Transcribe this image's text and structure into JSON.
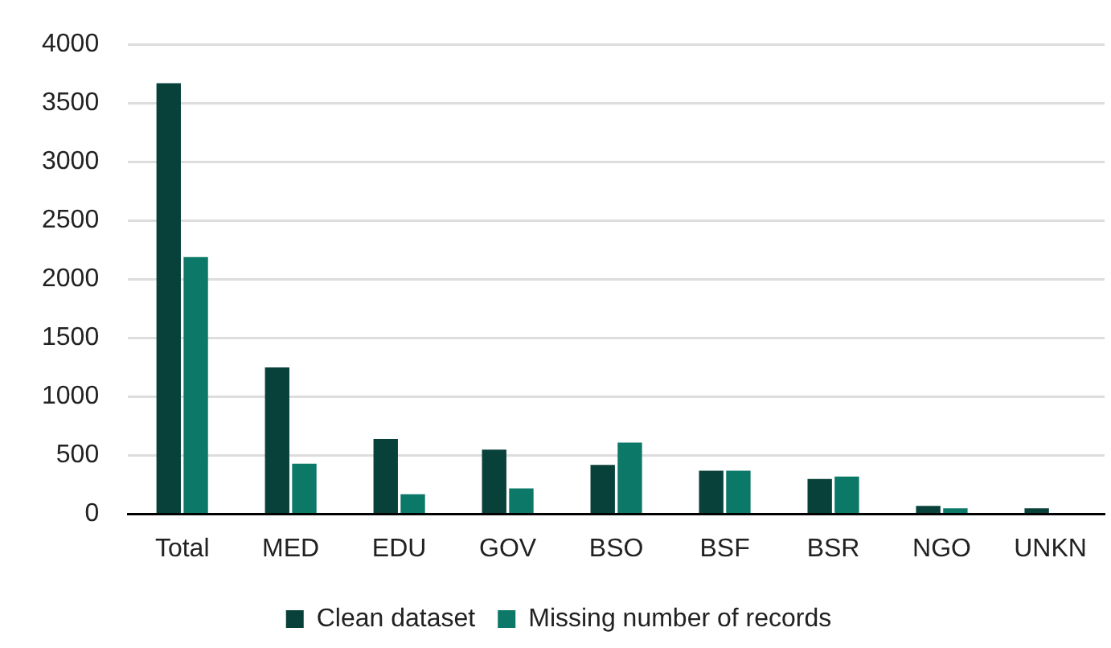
{
  "chart_data": {
    "type": "bar",
    "categories": [
      "Total",
      "MED",
      "EDU",
      "GOV",
      "BSO",
      "BSF",
      "BSR",
      "NGO",
      "UNKN"
    ],
    "series": [
      {
        "name": "Clean dataset",
        "color": "#08413a",
        "values": [
          3670,
          1250,
          640,
          550,
          420,
          370,
          300,
          70,
          50
        ]
      },
      {
        "name": "Missing number of records",
        "color": "#0b7868",
        "values": [
          2190,
          430,
          170,
          220,
          610,
          370,
          320,
          50,
          null
        ]
      }
    ],
    "ylim": [
      0,
      4000
    ],
    "yticks": [
      0,
      500,
      1000,
      1500,
      2000,
      2500,
      3000,
      3500,
      4000
    ],
    "grid": "y",
    "legend": "bottom"
  }
}
